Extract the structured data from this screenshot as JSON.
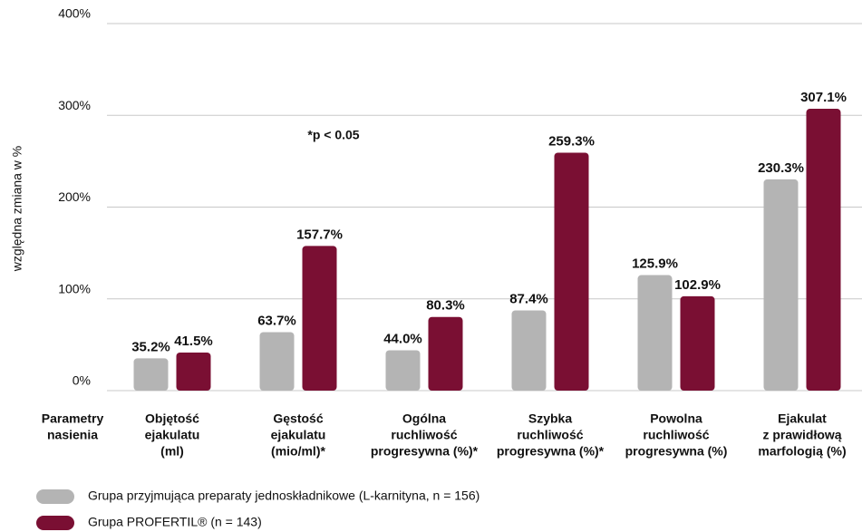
{
  "chart_data": {
    "type": "bar",
    "y_label": "względna zmiana w %",
    "x_label": [
      "Parametry",
      "nasienia"
    ],
    "annotation": "*p < 0.05",
    "categories": [
      [
        "Objętość",
        "ejakulatu",
        "(ml)"
      ],
      [
        "Gęstość",
        "ejakulatu",
        "(mio/ml)*"
      ],
      [
        "Ogólna",
        "ruchliwość",
        "progresywna (%)*"
      ],
      [
        "Szybka",
        "ruchliwość",
        "progresywna (%)*"
      ],
      [
        "Powolna",
        "ruchliwość",
        "progresywna (%)"
      ],
      [
        "Ejakulat",
        "z prawidłową",
        "marfologią (%)"
      ]
    ],
    "series": [
      {
        "name": "Grupa przyjmująca preparaty jednoskładnikowe (L-karnityna, n = 156)",
        "color": "#b4b4b4",
        "values": [
          35.2,
          63.7,
          44.0,
          87.4,
          125.9,
          230.3
        ],
        "value_labels": [
          "35.2%",
          "63.7%",
          "44.0%",
          "87.4%",
          "125.9%",
          "230.3%"
        ]
      },
      {
        "name": "Grupa PROFERTIL® (n = 143)",
        "color": "#7a0f33",
        "values": [
          41.5,
          157.7,
          80.3,
          259.3,
          102.9,
          307.1
        ],
        "value_labels": [
          "41.5%",
          "157.7%",
          "80.3%",
          "259.3%",
          "102.9%",
          "307.1%"
        ]
      }
    ],
    "ylim": [
      0,
      400
    ],
    "yticks": [
      {
        "value": 0,
        "label": "0%"
      },
      {
        "value": 100,
        "label": "100%"
      },
      {
        "value": 200,
        "label": "200%"
      },
      {
        "value": 300,
        "label": "300%"
      },
      {
        "value": 400,
        "label": "400%"
      }
    ],
    "grid": true
  }
}
